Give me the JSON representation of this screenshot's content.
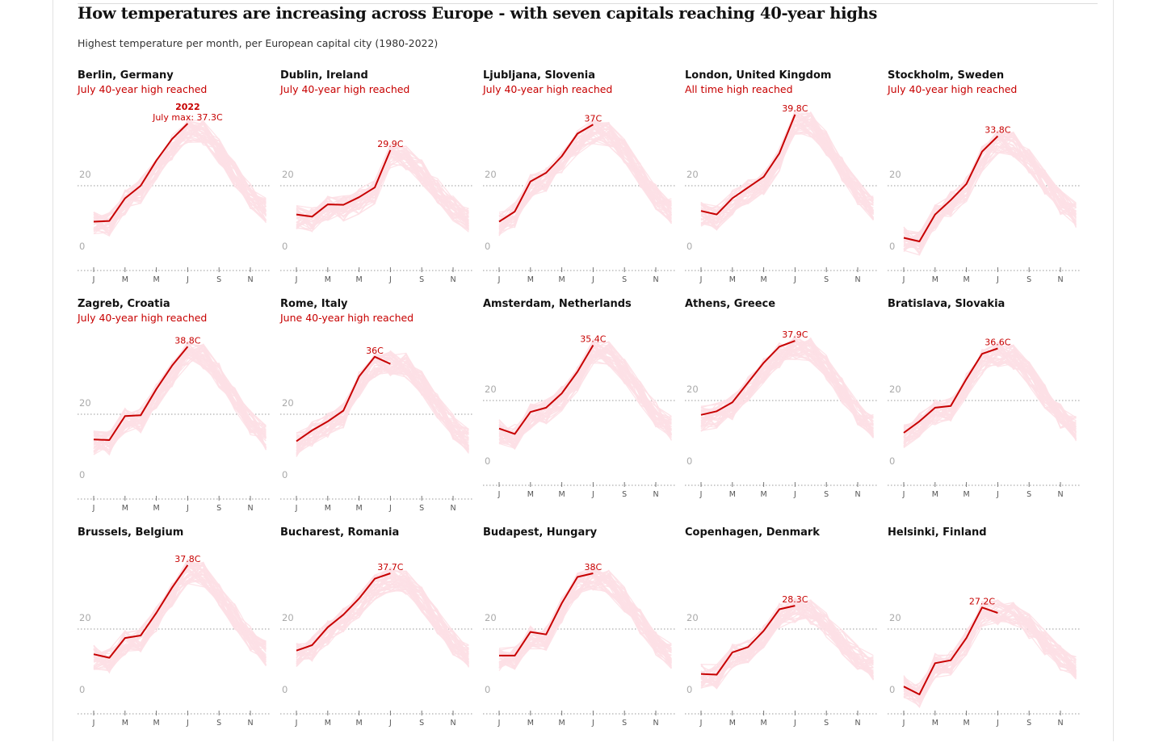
{
  "title": "How temperatures are increasing across Europe - with seven capitals reaching 40-year highs",
  "subtitle": "Highest temperature per month, per European capital city (1980-2022)",
  "colors": {
    "highlight": "#c70000",
    "history": "#fde0e5",
    "text": "#121212",
    "grid": "#999999"
  },
  "chart_data": [
    {
      "type": "line",
      "city": "Berlin, Germany",
      "status": "July 40-year high reached",
      "y_ticks": [
        0,
        20
      ],
      "ylim": [
        0,
        40
      ],
      "x_tick_labels": [
        "J",
        "M",
        "M",
        "J",
        "S",
        "N"
      ],
      "months_2022": [
        10,
        10.2,
        16.5,
        20,
        27,
        33,
        37.3
      ],
      "label": {
        "month": 7,
        "text": "July max: 37.3C",
        "year": "2022"
      }
    },
    {
      "type": "line",
      "city": "Dublin, Ireland",
      "status": "July 40-year high reached",
      "y_ticks": [
        0,
        20
      ],
      "ylim": [
        0,
        40
      ],
      "x_tick_labels": [
        "J",
        "M",
        "M",
        "J",
        "S",
        "N"
      ],
      "months_2022": [
        12,
        11.4,
        14.8,
        14.7,
        16.8,
        19.5,
        29.9
      ],
      "label": {
        "month": 7,
        "text": "29.9C"
      }
    },
    {
      "type": "line",
      "city": "Ljubljana, Slovenia",
      "status": "July 40-year high reached",
      "y_ticks": [
        0,
        20
      ],
      "ylim": [
        0,
        40
      ],
      "x_tick_labels": [
        "J",
        "M",
        "M",
        "J",
        "S",
        "N"
      ],
      "months_2022": [
        10,
        12.8,
        21.2,
        23.6,
        28.2,
        34.5,
        37
      ],
      "label": {
        "month": 7,
        "text": "37C"
      }
    },
    {
      "type": "line",
      "city": "London, United Kingdom",
      "status": "All time high reached",
      "y_ticks": [
        0,
        20
      ],
      "ylim": [
        0,
        40
      ],
      "x_tick_labels": [
        "J",
        "M",
        "M",
        "J",
        "S",
        "N"
      ],
      "months_2022": [
        13,
        12,
        16.5,
        19.5,
        22.5,
        29,
        39.8
      ],
      "label": {
        "month": 7,
        "text": "39.8C"
      }
    },
    {
      "type": "line",
      "city": "Stockholm, Sweden",
      "status": "July 40-year high reached",
      "y_ticks": [
        0,
        20
      ],
      "ylim": [
        0,
        40
      ],
      "x_tick_labels": [
        "J",
        "M",
        "M",
        "J",
        "S",
        "N"
      ],
      "months_2022": [
        5.5,
        4.5,
        12,
        16,
        20.5,
        29.5,
        33.8
      ],
      "label": {
        "month": 7,
        "text": "33.8C"
      }
    },
    {
      "type": "line",
      "city": "Zagreb, Croatia",
      "status": "July 40-year high reached",
      "y_ticks": [
        0,
        20
      ],
      "ylim": [
        0,
        40
      ],
      "x_tick_labels": [
        "J",
        "M",
        "M",
        "J",
        "S",
        "N"
      ],
      "months_2022": [
        13,
        12.8,
        19.5,
        19.7,
        27,
        33.5,
        38.8
      ],
      "label": {
        "month": 7,
        "text": "38.8C"
      }
    },
    {
      "type": "line",
      "city": "Rome, Italy",
      "status": "June 40-year high reached",
      "y_ticks": [
        0,
        20
      ],
      "ylim": [
        0,
        40
      ],
      "x_tick_labels": [
        "J",
        "M",
        "M",
        "J",
        "S",
        "N"
      ],
      "months_2022": [
        12.5,
        15.5,
        18,
        21,
        30.5,
        36,
        34
      ],
      "label": {
        "month": 6,
        "text": "36C"
      }
    },
    {
      "type": "line",
      "city": "Amsterdam, Netherlands",
      "status": "",
      "y_ticks": [
        0,
        20
      ],
      "ylim": [
        0,
        40
      ],
      "x_tick_labels": [
        "J",
        "M",
        "M",
        "J",
        "S",
        "N"
      ],
      "months_2022": [
        12.2,
        10.7,
        16.8,
        18,
        22,
        28,
        35.4
      ],
      "label": {
        "month": 7,
        "text": "35.4C"
      }
    },
    {
      "type": "line",
      "city": "Athens, Greece",
      "status": "",
      "y_ticks": [
        0,
        20
      ],
      "ylim": [
        0,
        40
      ],
      "x_tick_labels": [
        "J",
        "M",
        "M",
        "J",
        "S",
        "N"
      ],
      "months_2022": [
        16,
        17,
        19.5,
        25,
        30.5,
        35,
        36.6
      ],
      "label": {
        "month": 7,
        "text": "37.9C"
      }
    },
    {
      "type": "line",
      "city": "Bratislava, Slovakia",
      "status": "",
      "y_ticks": [
        0,
        20
      ],
      "ylim": [
        0,
        40
      ],
      "x_tick_labels": [
        "J",
        "M",
        "M",
        "J",
        "S",
        "N"
      ],
      "months_2022": [
        11,
        14.2,
        18,
        18.5,
        26,
        33,
        34.5
      ],
      "label": {
        "month": 7,
        "text": "36.6C"
      }
    },
    {
      "type": "line",
      "city": "Brussels, Belgium",
      "status": "",
      "y_ticks": [
        0,
        20
      ],
      "ylim": [
        0,
        40
      ],
      "x_tick_labels": [
        "J",
        "M",
        "M",
        "J",
        "S",
        "N"
      ],
      "months_2022": [
        13,
        12,
        17.5,
        18.2,
        24.5,
        31.5,
        37.8
      ],
      "label": {
        "month": 7,
        "text": "37.8C"
      }
    },
    {
      "type": "line",
      "city": "Bucharest, Romania",
      "status": "",
      "y_ticks": [
        0,
        20
      ],
      "ylim": [
        0,
        40
      ],
      "x_tick_labels": [
        "J",
        "M",
        "M",
        "J",
        "S",
        "N"
      ],
      "months_2022": [
        14,
        15.5,
        20.5,
        24,
        28.5,
        34,
        35.5
      ],
      "label": {
        "month": 7,
        "text": "37.7C"
      }
    },
    {
      "type": "line",
      "city": "Budapest, Hungary",
      "status": "",
      "y_ticks": [
        0,
        20
      ],
      "ylim": [
        0,
        40
      ],
      "x_tick_labels": [
        "J",
        "M",
        "M",
        "J",
        "S",
        "N"
      ],
      "months_2022": [
        12.6,
        12.6,
        19.2,
        18.5,
        27.2,
        34.5,
        35.5
      ],
      "label": {
        "month": 7,
        "text": "38C"
      }
    },
    {
      "type": "line",
      "city": "Copenhagen, Denmark",
      "status": "",
      "y_ticks": [
        0,
        20
      ],
      "ylim": [
        0,
        40
      ],
      "x_tick_labels": [
        "J",
        "M",
        "M",
        "J",
        "S",
        "N"
      ],
      "months_2022": [
        7.5,
        7.3,
        13.5,
        15,
        19.5,
        25.5,
        26.5
      ],
      "label": {
        "month": 7,
        "text": "28.3C"
      }
    },
    {
      "type": "line",
      "city": "Helsinki, Finland",
      "status": "",
      "y_ticks": [
        0,
        20
      ],
      "ylim": [
        0,
        40
      ],
      "x_tick_labels": [
        "J",
        "M",
        "M",
        "J",
        "S",
        "N"
      ],
      "months_2022": [
        4,
        1.8,
        10.5,
        11.3,
        17.5,
        26,
        24.5
      ],
      "label": {
        "month": 6,
        "text": "27.2C"
      }
    }
  ]
}
